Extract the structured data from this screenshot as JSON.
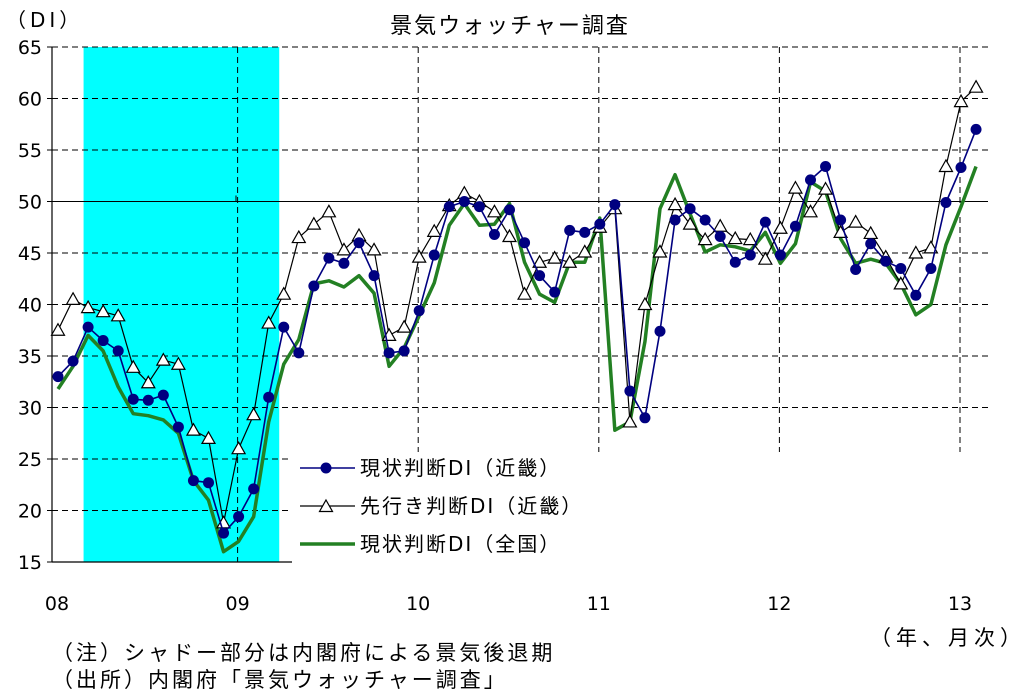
{
  "chart_data": {
    "type": "line",
    "title": "景気ウォッチャー調査",
    "ylabel": "（DI）",
    "xlabel": "（年、月次）",
    "ylim": [
      15,
      65
    ],
    "yticks": [
      15,
      20,
      25,
      30,
      35,
      40,
      45,
      50,
      55,
      60,
      65
    ],
    "x_start": "2008-01",
    "xtick_labels": [
      "08",
      "09",
      "10",
      "11",
      "12",
      "13"
    ],
    "reference_line": 50,
    "shaded_period": {
      "start": "2008-03",
      "end": "2009-03",
      "color": "#00ffff"
    },
    "series": [
      {
        "name": "現状判断DI（近畿）",
        "color": "#000080",
        "marker": "circle",
        "values": [
          33.0,
          34.5,
          37.8,
          36.5,
          35.5,
          30.8,
          30.7,
          31.2,
          28.1,
          22.9,
          22.7,
          17.8,
          19.4,
          22.1,
          31.0,
          37.8,
          35.3,
          41.8,
          44.5,
          44.0,
          46.0,
          42.8,
          35.3,
          35.5,
          39.4,
          44.8,
          49.5,
          50.0,
          49.5,
          46.8,
          49.2,
          46.0,
          42.8,
          41.2,
          47.2,
          47.0,
          47.8,
          49.7,
          31.6,
          29.0,
          37.4,
          48.2,
          49.3,
          48.2,
          46.6,
          44.1,
          44.8,
          48.0,
          44.8,
          47.6,
          52.1,
          53.4,
          48.2,
          43.4,
          45.9,
          44.2,
          43.5,
          40.9,
          43.5,
          49.9,
          53.3,
          57.0
        ]
      },
      {
        "name": "先行き判断DI（近畿）",
        "color": "#000000",
        "marker": "triangle",
        "values": [
          37.5,
          40.5,
          39.7,
          39.3,
          38.9,
          33.9,
          32.4,
          34.6,
          34.2,
          27.8,
          27.0,
          18.8,
          26.0,
          29.3,
          38.2,
          41.0,
          46.5,
          47.8,
          49.0,
          45.3,
          46.7,
          45.3,
          37.0,
          37.8,
          44.6,
          47.1,
          49.6,
          50.8,
          50.0,
          49.0,
          46.6,
          41.0,
          44.1,
          44.5,
          44.1,
          45.1,
          47.5,
          49.3,
          28.6,
          40.0,
          45.1,
          49.7,
          47.8,
          46.3,
          47.6,
          46.4,
          46.3,
          44.4,
          47.4,
          51.3,
          49.0,
          51.2,
          47.0,
          48.0,
          46.9,
          44.6,
          42.0,
          45.0,
          45.5,
          53.4,
          59.7,
          61.1
        ]
      },
      {
        "name": "現状判断DI（全国）",
        "color": "#238023",
        "marker": "none",
        "values": [
          31.8,
          34.0,
          37.0,
          35.5,
          32.0,
          29.4,
          29.2,
          28.8,
          27.5,
          22.9,
          21.0,
          16.0,
          17.0,
          19.4,
          28.6,
          34.2,
          36.6,
          42.0,
          42.3,
          41.7,
          42.8,
          41.1,
          34.0,
          35.8,
          38.9,
          42.1,
          47.7,
          49.8,
          47.7,
          47.8,
          49.8,
          44.1,
          41.0,
          40.2,
          44.1,
          44.1,
          48.4,
          27.8,
          28.6,
          36.4,
          49.3,
          52.6,
          48.8,
          45.1,
          45.8,
          45.6,
          45.2,
          47.0,
          44.0,
          45.9,
          51.9,
          51.0,
          46.4,
          44.0,
          44.4,
          44.0,
          42.0,
          39.0,
          40.0,
          45.8,
          49.5,
          53.4
        ]
      }
    ]
  },
  "notes": {
    "shade_note": "（注）シャドー部分は内閣府による景気後退期",
    "source": "（出所）内閣府「景気ウォッチャー調査」"
  }
}
